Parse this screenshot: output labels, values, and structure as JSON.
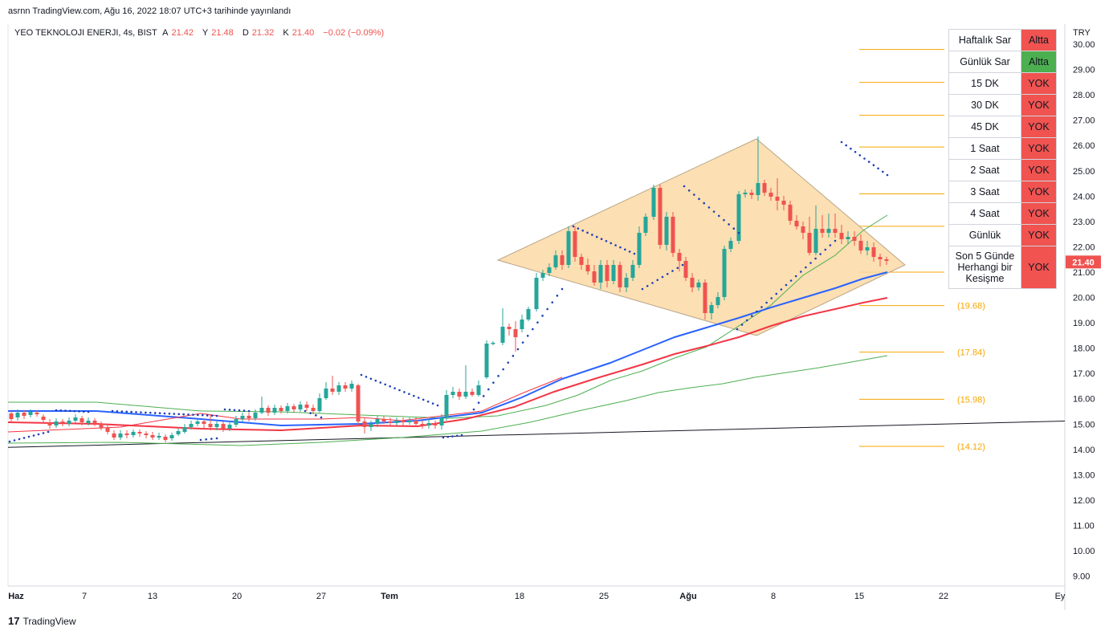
{
  "header": {
    "publisher_line": "asrnn TradingView.com, Ağu 16, 2022 18:07 UTC+3 tarihinde yayınlandı",
    "symbol": "YEO TEKNOLOJI ENERJI, 4s, BIST",
    "ohlc": {
      "open_label": "A",
      "open": "21.42",
      "high_label": "Y",
      "high": "21.48",
      "low_label": "D",
      "low": "21.32",
      "close_label": "K",
      "close": "21.40",
      "change": "−0.02 (−0.09%)"
    }
  },
  "brand": {
    "logo": "17",
    "name": "TradingView"
  },
  "colors": {
    "up": "#26a69a",
    "down": "#ef5350",
    "table_red": "#f05350",
    "table_green": "#4caf50",
    "ema_blue": "#2962ff",
    "ema_red": "#f23645",
    "ema_green": "#4caf50",
    "triangle_fill": "#fcd9a4",
    "level_line": "#f7a600",
    "sar_dots": "#1a3fb8"
  },
  "signal_table": [
    {
      "label": "Haftalık Sar",
      "value": "Altta",
      "status": "red"
    },
    {
      "label": "Günlük Sar",
      "value": "Altta",
      "status": "green"
    },
    {
      "label": "15 DK",
      "value": "YOK",
      "status": "red"
    },
    {
      "label": "30 DK",
      "value": "YOK",
      "status": "red"
    },
    {
      "label": "45 DK",
      "value": "YOK",
      "status": "red"
    },
    {
      "label": "1 Saat",
      "value": "YOK",
      "status": "red"
    },
    {
      "label": "2 Saat",
      "value": "YOK",
      "status": "red"
    },
    {
      "label": "3 Saat",
      "value": "YOK",
      "status": "red"
    },
    {
      "label": "4 Saat",
      "value": "YOK",
      "status": "red"
    },
    {
      "label": "Günlük",
      "value": "YOK",
      "status": "red"
    },
    {
      "label": "Son 5 Günde Herhangi bir Kesişme",
      "value": "YOK",
      "status": "red"
    }
  ],
  "chart_data": {
    "type": "candlestick",
    "currency": "TRY",
    "y_range": [
      8.6,
      30.4
    ],
    "y_ticks": [
      "30.00",
      "29.00",
      "28.00",
      "27.00",
      "26.00",
      "25.00",
      "24.00",
      "23.00",
      "22.00",
      "21.00",
      "20.00",
      "19.00",
      "18.00",
      "17.00",
      "16.00",
      "15.00",
      "14.00",
      "13.00",
      "12.00",
      "11.00",
      "10.00",
      "9.00"
    ],
    "x_ticks": [
      "Haz",
      "7",
      "13",
      "20",
      "27",
      "Tem",
      "18",
      "25",
      "Ağu",
      "8",
      "15",
      "22",
      "Ey"
    ],
    "last_price": "21.40",
    "levels": [
      {
        "value": 29.79,
        "label": ""
      },
      {
        "value": 28.49,
        "label": ""
      },
      {
        "value": 27.19,
        "label": ""
      },
      {
        "value": 25.94,
        "label": ""
      },
      {
        "value": 24.09,
        "label": ""
      },
      {
        "value": 22.81,
        "label": ""
      },
      {
        "value": 21.0,
        "label": ""
      },
      {
        "value": 19.68,
        "label": "(19.68)"
      },
      {
        "value": 17.84,
        "label": "(17.84)"
      },
      {
        "value": 15.98,
        "label": "(15.98)"
      },
      {
        "value": 14.12,
        "label": "(14.12)"
      }
    ],
    "trendline": {
      "start": 14.08,
      "end": 15.12
    },
    "pattern": "symmetrical triangle (diamond)",
    "indicators": [
      "Parabolic SAR",
      "EMA blue",
      "EMA red",
      "EMA green",
      "EMA green (long)",
      "EMA red (envelope)"
    ]
  }
}
